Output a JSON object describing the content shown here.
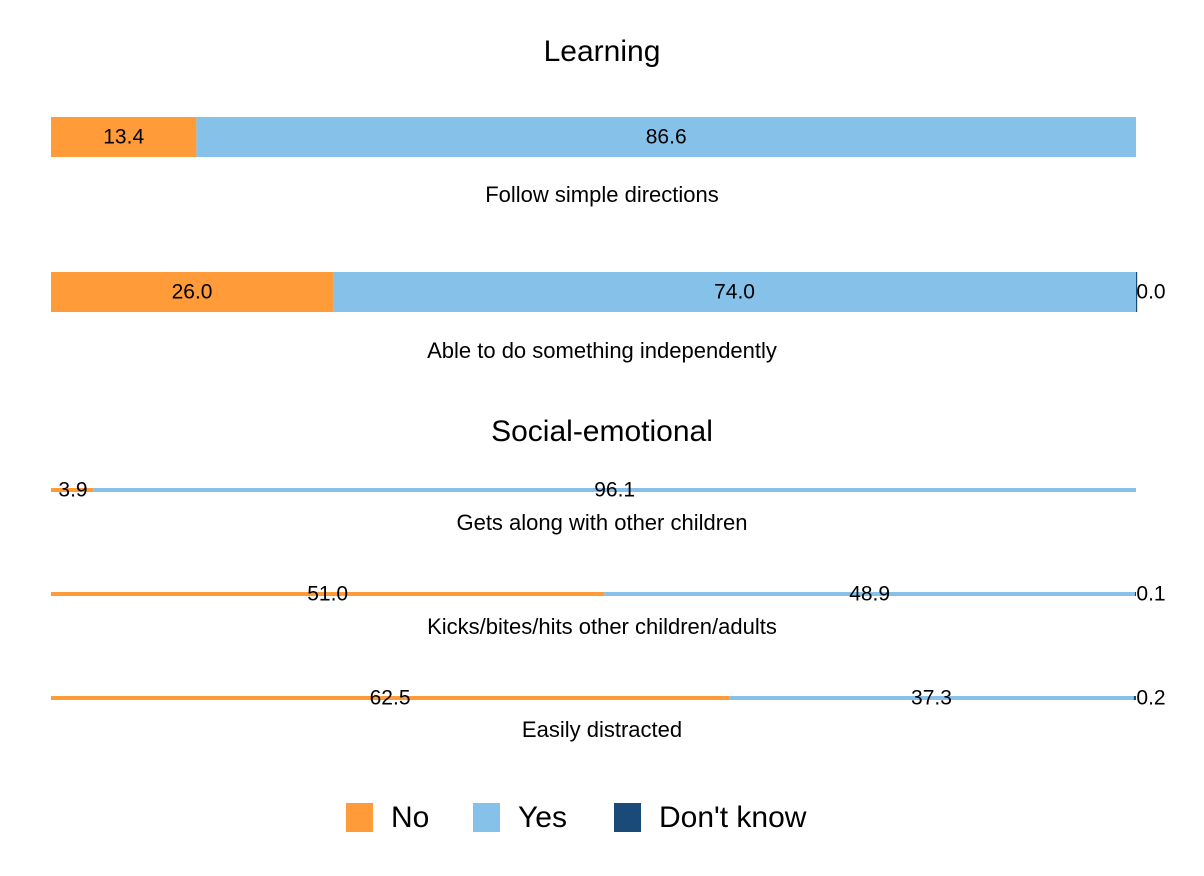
{
  "colors": {
    "No": "#FF9B38",
    "Yes": "#85C1E9",
    "Don't know": "#1A4A78"
  },
  "chart_data": {
    "type": "bar",
    "orientation": "horizontal",
    "stacked": true,
    "xlim": [
      0,
      100
    ],
    "grid": false,
    "legend_position": "bottom",
    "series_names": [
      "No",
      "Yes",
      "Don't know"
    ],
    "panels": [
      {
        "title": "Learning",
        "rows": [
          {
            "label": "Follow simple directions",
            "values": [
              13.4,
              86.6,
              null
            ],
            "labels": [
              "13.4",
              "86.6",
              ""
            ]
          },
          {
            "label": "Able to do something independently",
            "values": [
              26.0,
              74.0,
              0.0
            ],
            "labels": [
              "26.0",
              "74.0",
              "0.0"
            ]
          }
        ]
      },
      {
        "title": "Social-emotional",
        "rows": [
          {
            "label": "Gets along with other children",
            "values": [
              3.9,
              96.1,
              null
            ],
            "labels": [
              "3.9",
              "96.1",
              ""
            ]
          },
          {
            "label": "Kicks/bites/hits other children/adults",
            "values": [
              51.0,
              48.9,
              0.1
            ],
            "labels": [
              "51.0",
              "48.9",
              "0.1"
            ]
          },
          {
            "label": "Easily distracted",
            "values": [
              62.5,
              37.3,
              0.2
            ],
            "labels": [
              "62.5",
              "37.3",
              "0.2"
            ]
          }
        ]
      }
    ],
    "legend": [
      "No",
      "Yes",
      "Don't know"
    ]
  }
}
